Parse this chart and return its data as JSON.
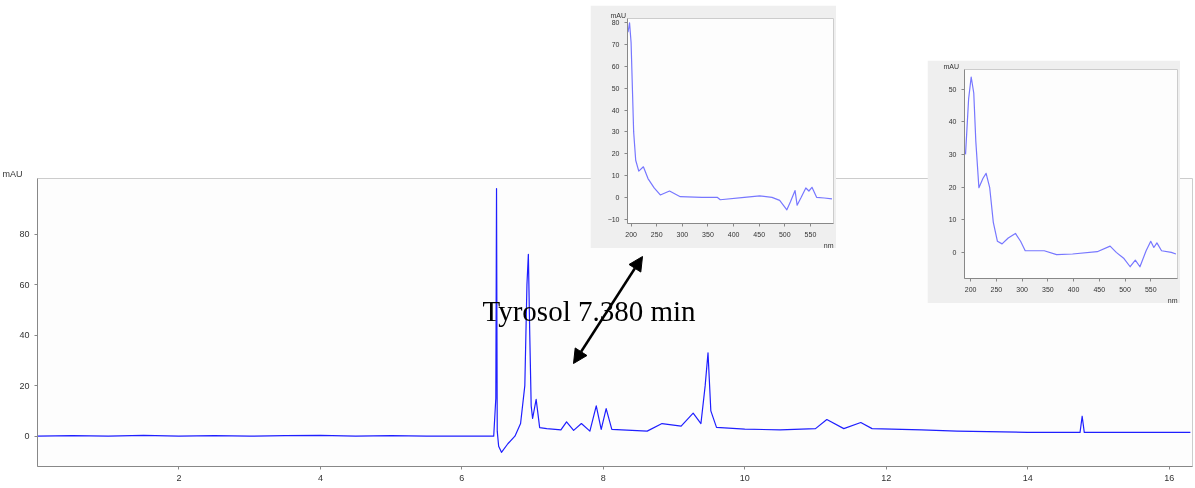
{
  "chart_data": [
    {
      "type": "line",
      "ylabel": "mAU",
      "color": "#1f1fff",
      "xlim": [
        0,
        16.33
      ],
      "ylim": [
        -12,
        102
      ],
      "xticks": [
        2,
        4,
        6,
        8,
        10,
        12,
        14,
        16
      ],
      "yticks": [
        0,
        20,
        40,
        60,
        80
      ],
      "x": [
        0,
        0.5,
        1,
        1.5,
        2,
        2.5,
        3,
        3.5,
        4,
        4.5,
        5,
        5.5,
        6,
        6.45,
        6.48,
        6.49,
        6.5,
        6.52,
        6.56,
        6.65,
        6.75,
        6.83,
        6.89,
        6.92,
        6.94,
        6.96,
        6.98,
        7.0,
        7.05,
        7.1,
        7.2,
        7.4,
        7.48,
        7.58,
        7.69,
        7.81,
        7.9,
        7.97,
        8.04,
        8.12,
        8.62,
        8.83,
        9.1,
        9.27,
        9.38,
        9.44,
        9.48,
        9.52,
        9.6,
        10,
        10.5,
        11.0,
        11.16,
        11.4,
        11.64,
        11.8,
        12.5,
        13,
        14,
        14.74,
        14.77,
        14.8,
        15.5,
        16.3
      ],
      "values": [
        0,
        0.2,
        0,
        0.3,
        0,
        0.2,
        0,
        0.2,
        0.3,
        0,
        0.2,
        0,
        0,
        0,
        15,
        98,
        2,
        -4,
        -6.4,
        -3,
        0,
        5,
        20,
        60,
        72,
        40,
        12,
        7,
        14.6,
        3.4,
        3,
        2.5,
        5.7,
        2.3,
        5,
        2,
        12,
        2.7,
        10.9,
        2.7,
        2,
        5,
        4,
        9.1,
        5,
        20,
        33,
        10,
        3.5,
        2.8,
        2.5,
        3,
        6.6,
        3,
        5.4,
        3,
        2.5,
        2,
        1.5,
        1.5,
        7.9,
        1.5,
        1.5,
        1.5
      ],
      "annotations": [
        "Tyrosol 7.380 min"
      ]
    },
    {
      "type": "line",
      "ylabel": "mAU",
      "xlabel": "nm",
      "color": "#7777ff",
      "xlim": [
        193,
        595
      ],
      "ylim": [
        -12,
        82
      ],
      "xticks": [
        200,
        250,
        300,
        350,
        400,
        450,
        500,
        550
      ],
      "yticks": [
        -10,
        0,
        10,
        20,
        30,
        40,
        50,
        60,
        70,
        80
      ],
      "x": [
        194,
        197,
        200,
        205,
        209,
        215,
        224,
        233,
        245,
        257,
        275,
        296,
        338,
        368,
        374,
        421,
        451,
        475,
        490,
        504,
        511,
        520,
        524,
        532,
        541,
        547,
        553,
        562,
        577,
        592
      ],
      "values": [
        75.7,
        80,
        71,
        30,
        17,
        12,
        14,
        8.6,
        4.3,
        1.1,
        2.9,
        0.3,
        0,
        0,
        -1.1,
        0,
        0.7,
        0,
        -1.4,
        -5.7,
        -2,
        3.1,
        -3.6,
        0,
        4.3,
        2.9,
        4.6,
        0,
        -0.3,
        -0.7
      ]
    },
    {
      "type": "line",
      "ylabel": "mAU",
      "xlabel": "nm",
      "color": "#7777ff",
      "xlim": [
        188,
        602
      ],
      "ylim": [
        -8,
        56
      ],
      "xticks": [
        200,
        250,
        300,
        350,
        400,
        450,
        500,
        550
      ],
      "yticks": [
        0,
        10,
        20,
        30,
        40,
        50
      ],
      "x": [
        190,
        196,
        201,
        206,
        210,
        216,
        224,
        230,
        237,
        244,
        252,
        261,
        273,
        287,
        297,
        306,
        343,
        367,
        398,
        446,
        471,
        483,
        498,
        510,
        520,
        529,
        541,
        550,
        556,
        562,
        571,
        590,
        599
      ],
      "values": [
        30,
        47,
        53.7,
        48.8,
        34,
        19.8,
        22.7,
        24.2,
        19.8,
        9.2,
        3.4,
        2.6,
        4.4,
        5.8,
        3.4,
        0.5,
        0.5,
        -0.7,
        -0.5,
        0.2,
        1.9,
        0,
        -1.9,
        -4.4,
        -2.4,
        -4.4,
        0.5,
        3.4,
        1.5,
        2.9,
        0.5,
        0,
        -0.5
      ]
    }
  ]
}
